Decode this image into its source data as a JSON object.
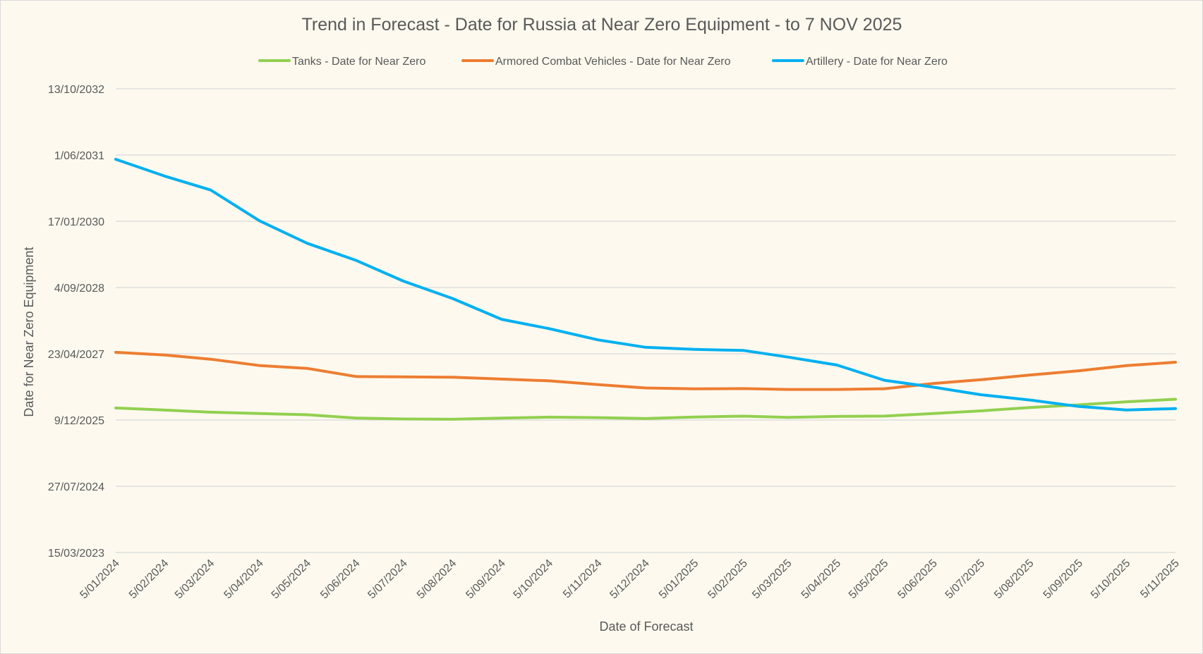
{
  "chart_data": {
    "type": "line",
    "title": "Trend in Forecast - Date for Russia at Near Zero Equipment - to 7 NOV 2025",
    "xlabel": "Date of Forecast",
    "ylabel": "Date for Near Zero Equipment",
    "legend_position": "top",
    "grid": true,
    "x_tick_labels": [
      "5/01/2024",
      "5/02/2024",
      "5/03/2024",
      "5/04/2024",
      "5/05/2024",
      "5/06/2024",
      "5/07/2024",
      "5/08/2024",
      "5/09/2024",
      "5/10/2024",
      "5/11/2024",
      "5/12/2024",
      "5/01/2025",
      "5/02/2025",
      "5/03/2025",
      "5/04/2025",
      "5/05/2025",
      "5/06/2025",
      "5/07/2025",
      "5/08/2025",
      "5/09/2025",
      "5/10/2025",
      "5/11/2025"
    ],
    "y_tick_labels": [
      "15/03/2023",
      "27/07/2024",
      "9/12/2025",
      "23/04/2027",
      "4/09/2028",
      "17/01/2030",
      "1/06/2031",
      "13/10/2032"
    ],
    "ylim": [
      "15/03/2023",
      "13/10/2032"
    ],
    "x": [
      "5/01/2024",
      "5/02/2024",
      "5/03/2024",
      "5/04/2024",
      "5/05/2024",
      "5/06/2024",
      "5/07/2024",
      "5/08/2024",
      "5/09/2024",
      "5/10/2024",
      "5/11/2024",
      "5/12/2024",
      "5/01/2025",
      "5/02/2025",
      "5/03/2025",
      "5/04/2025",
      "5/05/2025",
      "5/06/2025",
      "5/07/2025",
      "5/08/2025",
      "5/09/2025",
      "5/10/2025",
      "5/11/2025"
    ],
    "series": [
      {
        "name": "Tanks - Date for Near Zero",
        "color": "#92d050",
        "values": [
          "10/03/2026",
          "22/02/2026",
          "6/02/2026",
          "27/01/2026",
          "18/01/2026",
          "24/12/2025",
          "17/12/2025",
          "15/12/2025",
          "24/12/2025",
          "31/12/2025",
          "27/12/2025",
          "20/12/2025",
          "1/01/2026",
          "7/01/2026",
          "29/12/2025",
          "5/01/2026",
          "8/01/2026",
          "27/01/2026",
          "16/02/2026",
          "13/03/2026",
          "3/04/2026",
          "26/04/2026",
          "15/05/2026"
        ]
      },
      {
        "name": "Armored Combat Vehicles - Date for Near Zero",
        "color": "#ed7d31",
        "values": [
          "4/05/2027",
          "14/04/2027",
          "13/03/2027",
          "24/01/2027",
          "3/01/2027",
          "2/11/2026",
          "31/10/2026",
          "28/10/2026",
          "14/10/2026",
          "1/10/2026",
          "2/09/2026",
          "8/08/2026",
          "1/08/2026",
          "3/08/2026",
          "28/07/2026",
          "28/07/2026",
          "2/08/2026",
          "11/09/2026",
          "9/10/2026",
          "14/11/2026",
          "16/12/2026",
          "24/01/2027",
          "18/02/2027"
        ]
      },
      {
        "name": "Artillery - Date for Near Zero",
        "color": "#00b0f0",
        "values": [
          "30/04/2031",
          "24/12/2030",
          "10/09/2030",
          "20/01/2030",
          "4/08/2029",
          "28/03/2029",
          "22/10/2028",
          "13/06/2028",
          "8/01/2028",
          "30/10/2027",
          "6/08/2027",
          "11/06/2027",
          "26/05/2027",
          "18/05/2027",
          "29/03/2027",
          "28/01/2027",
          "5/10/2026",
          "14/08/2026",
          "18/06/2026",
          "9/05/2026",
          "21/03/2026",
          "23/02/2026",
          "5/03/2026"
        ]
      }
    ]
  }
}
